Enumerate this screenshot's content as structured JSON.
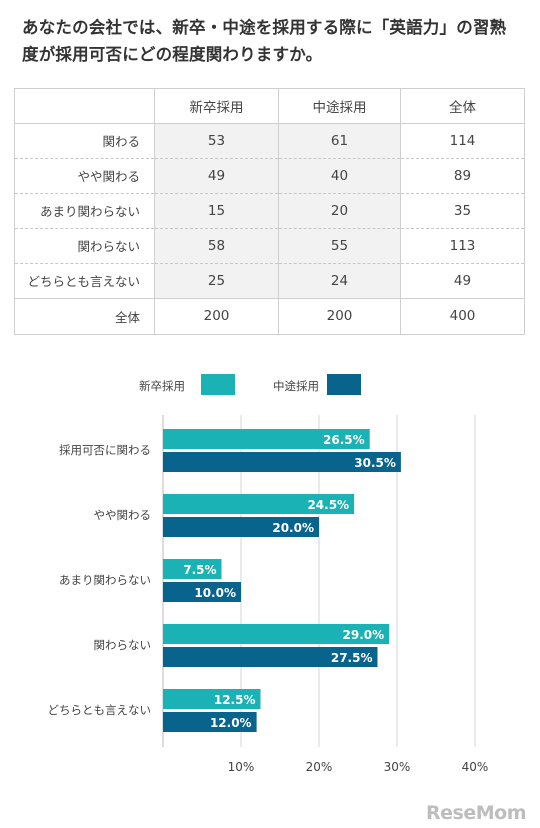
{
  "title": "あなたの会社では、新卒・中途を採用する際に「英語力」の習熟度が採用可否にどの程度関わりますか。",
  "table": {
    "headers": [
      "",
      "新卒採用",
      "中途採用",
      "全体"
    ],
    "rows": [
      {
        "label": "関わる",
        "values": [
          "53",
          "61",
          "114"
        ]
      },
      {
        "label": "やや関わる",
        "values": [
          "49",
          "40",
          "89"
        ]
      },
      {
        "label": "あまり関わらない",
        "values": [
          "15",
          "20",
          "35"
        ]
      },
      {
        "label": "関わらない",
        "values": [
          "58",
          "55",
          "113"
        ]
      },
      {
        "label": "どちらとも言えない",
        "values": [
          "25",
          "24",
          "49"
        ]
      }
    ],
    "total": {
      "label": "全体",
      "values": [
        "200",
        "200",
        "400"
      ]
    }
  },
  "chart_data": {
    "type": "bar",
    "orientation": "horizontal",
    "categories": [
      "採用可否に関わる",
      "やや関わる",
      "あまり関わらない",
      "関わらない",
      "どちらとも言えない"
    ],
    "series": [
      {
        "name": "新卒採用",
        "values": [
          26.5,
          24.5,
          7.5,
          29.0,
          12.5
        ],
        "color": "#1ab2b4"
      },
      {
        "name": "中途採用",
        "values": [
          30.5,
          20.0,
          10.0,
          27.5,
          12.0
        ],
        "color": "#08638d"
      }
    ],
    "data_labels": [
      [
        "26.5%",
        "24.5%",
        "7.5%",
        "29.0%",
        "12.5%"
      ],
      [
        "30.5%",
        "20.0%",
        "10.0%",
        "27.5%",
        "12.0%"
      ]
    ],
    "xticks": [
      "10%",
      "20%",
      "30%",
      "40%"
    ],
    "xtick_values": [
      10,
      20,
      30,
      40
    ],
    "xlim": [
      0,
      40
    ],
    "grid": true,
    "legend_position": "top"
  },
  "watermark": "ReseMom"
}
